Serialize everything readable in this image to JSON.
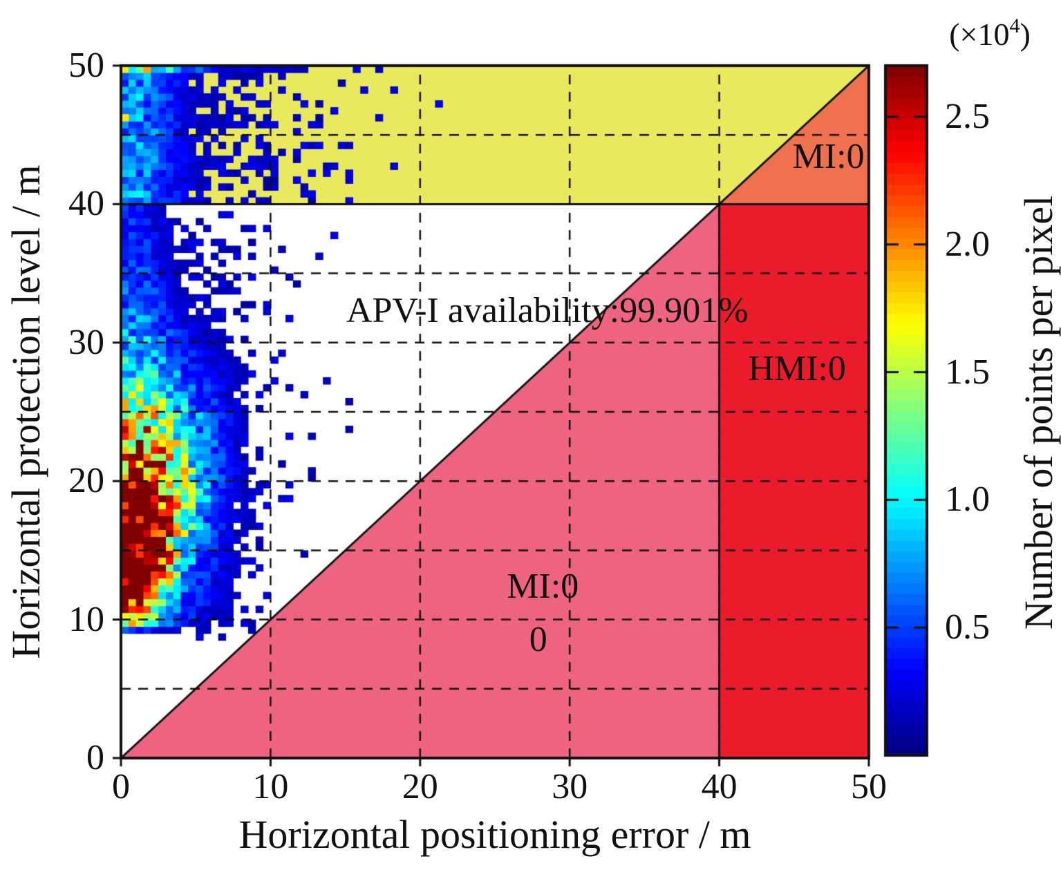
{
  "chart_data": {
    "type": "heatmap",
    "subtype": "stanford-integrity-diagram",
    "xlabel": "Horizontal positioning error / m",
    "ylabel": "Horizontal protection level / m",
    "xlim": [
      0,
      50
    ],
    "ylim": [
      0,
      50
    ],
    "x_ticks": [
      "0",
      "10",
      "20",
      "30",
      "40",
      "50"
    ],
    "x_tick_values": [
      0,
      10,
      20,
      30,
      40,
      50
    ],
    "y_ticks": [
      "0",
      "10",
      "20",
      "30",
      "40",
      "50"
    ],
    "y_tick_values": [
      0,
      10,
      20,
      30,
      40,
      50
    ],
    "grid": {
      "style": "dashed",
      "x_lines": [
        10,
        20,
        30,
        40
      ],
      "y_lines": [
        5,
        10,
        15,
        20,
        25,
        30,
        35,
        45
      ],
      "dash": [
        14,
        11
      ],
      "color": "#111111"
    },
    "regions": [
      {
        "name": "system-unavailable-band",
        "polygon": [
          [
            0,
            40
          ],
          [
            40,
            40
          ],
          [
            50,
            50
          ],
          [
            0,
            50
          ]
        ],
        "color": "#e9e95e"
      },
      {
        "name": "mi-system-unavailable-triangle",
        "polygon": [
          [
            40,
            40
          ],
          [
            50,
            40
          ],
          [
            50,
            50
          ]
        ],
        "color": "#f0714d"
      },
      {
        "name": "hmi-region",
        "polygon": [
          [
            40,
            0
          ],
          [
            50,
            0
          ],
          [
            50,
            40
          ],
          [
            40,
            40
          ]
        ],
        "color": "#ea1c2c"
      },
      {
        "name": "mi-region-triangle",
        "polygon": [
          [
            0,
            0
          ],
          [
            40,
            0
          ],
          [
            40,
            40
          ]
        ],
        "color": "#ee6380"
      }
    ],
    "boundary_lines": [
      {
        "name": "diagonal",
        "from": [
          0,
          0
        ],
        "to": [
          50,
          50
        ]
      },
      {
        "name": "alert-limit-horizontal",
        "from": [
          0,
          40
        ],
        "to": [
          50,
          40
        ]
      },
      {
        "name": "alert-limit-vertical",
        "from": [
          40,
          0
        ],
        "to": [
          40,
          40
        ]
      }
    ],
    "annotations": {
      "availability": {
        "text": "APV-I availability:99.901%",
        "x": 28.5,
        "y": 32.3
      },
      "mi_unavailable": {
        "text": "MI:0",
        "x": 47.3,
        "y": 43.4
      },
      "hmi": {
        "text": "HMI:0",
        "x": 45.2,
        "y": 28.1
      },
      "mi": {
        "text": "MI:0",
        "x": 28.2,
        "y": 12.4
      },
      "mi_count": {
        "text": "0",
        "x": 27.9,
        "y": 8.55
      }
    },
    "colorbar": {
      "label": "Number of points per pixel",
      "scale_prefix": "(×10",
      "scale_exponent": "4",
      "scale_suffix": ")",
      "ticks": [
        "0.5",
        "1.0",
        "1.5",
        "2.0",
        "2.5"
      ],
      "tick_values": [
        0.5,
        1.0,
        1.5,
        2.0,
        2.5
      ],
      "range": [
        0,
        2.7
      ],
      "colormap": "jet",
      "steps": 64
    },
    "density_model": {
      "seed": 11,
      "cell": 0.5,
      "vmax": 2.7,
      "threshold": 0.14,
      "noise": [
        0.55,
        0.9
      ],
      "peak": {
        "amp": 2.85,
        "x": 0.9,
        "y": 12.8,
        "sy_down": 1.9,
        "sy_up": 6.5,
        "sx_base": 1.05,
        "sx_slope": 0.16
      },
      "halo": {
        "amp": 1.0,
        "x": 1.5,
        "sx": 3.6,
        "y": 19.0,
        "sy": 7.5
      },
      "column": {
        "amp": 0.4,
        "x": 0.9,
        "sx": 1.6,
        "y_min": 9.5
      },
      "band": {
        "amp": 0.3,
        "x": 1.5,
        "sx": 3.2,
        "y_min": 40
      },
      "top_stripe": {
        "amp": 0.7,
        "sx": 2.5,
        "amp2": 0.3,
        "sx2": 9.0,
        "y_min": 49.4
      },
      "bottom_tail": {
        "amp": 0.9,
        "x": 0.4,
        "sx": 0.5,
        "y": 9.8,
        "sy": 0.4
      },
      "cutoff": {
        "y": 9.2,
        "k": 0.22
      },
      "speckle": {
        "band": {
          "amp": 0.45,
          "x": 5.0,
          "sx": 5.0,
          "amp2": 0.05,
          "x2": 12.0,
          "sx2": 4.5
        },
        "top_bonus": {
          "amp": 0.35,
          "sx": 10.0
        },
        "main": {
          "amp": 0.5,
          "x": 4.5,
          "sx": 3.2,
          "y": 22.0,
          "sy": 14.0,
          "amp2": 0.02,
          "x2": 11.0,
          "sx2": 3.0
        },
        "value": [
          0.07,
          0.22
        ]
      },
      "extra_cells": [
        {
          "x": 0.25,
          "y": 46.25,
          "v": 1.75
        }
      ]
    }
  }
}
